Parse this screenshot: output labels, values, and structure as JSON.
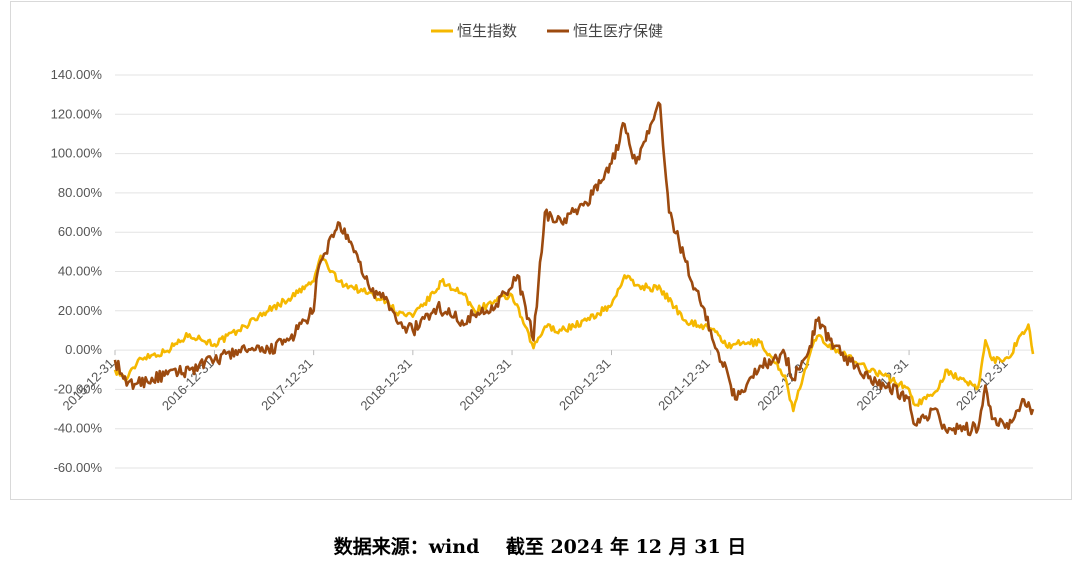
{
  "caption": {
    "source": "数据来源：wind",
    "asof": "截至 2024 年 12 月 31 日"
  },
  "chart_data": {
    "type": "line",
    "title": "",
    "xlabel": "",
    "ylabel": "",
    "ylim": [
      -0.6,
      1.4
    ],
    "y_ticks": [
      "140.00%",
      "120.00%",
      "100.00%",
      "80.00%",
      "60.00%",
      "40.00%",
      "20.00%",
      "0.00%",
      "-20.00%",
      "-40.00%",
      "-60.00%"
    ],
    "y_tick_values": [
      1.4,
      1.2,
      1.0,
      0.8,
      0.6,
      0.4,
      0.2,
      0.0,
      -0.2,
      -0.4,
      -0.6
    ],
    "x_ticks": [
      "2015-12-31",
      "2016-12-31",
      "2017-12-31",
      "2018-12-31",
      "2019-12-31",
      "2020-12-31",
      "2021-12-31",
      "2022-12-31",
      "2023-12-31",
      "2024-12-31"
    ],
    "xlim": [
      "2015-12-31",
      "2025-03-31"
    ],
    "grid": true,
    "legend_position": "top-center",
    "series": [
      {
        "name": "恒生指数",
        "color": "#F5B800",
        "x": [
          "2015-12-31",
          "2016-02-12",
          "2016-03-31",
          "2016-06-30",
          "2016-09-30",
          "2016-12-31",
          "2017-03-31",
          "2017-06-30",
          "2017-09-30",
          "2017-12-31",
          "2018-01-26",
          "2018-03-31",
          "2018-06-30",
          "2018-09-30",
          "2018-10-31",
          "2018-12-31",
          "2019-03-31",
          "2019-04-15",
          "2019-06-30",
          "2019-08-15",
          "2019-09-30",
          "2019-12-31",
          "2020-03-19",
          "2020-04-30",
          "2020-06-30",
          "2020-09-30",
          "2020-12-31",
          "2021-02-17",
          "2021-03-31",
          "2021-06-30",
          "2021-09-30",
          "2021-12-31",
          "2022-03-15",
          "2022-03-31",
          "2022-06-30",
          "2022-09-30",
          "2022-10-31",
          "2022-12-31",
          "2023-01-27",
          "2023-03-31",
          "2023-06-30",
          "2023-09-30",
          "2023-12-31",
          "2024-01-22",
          "2024-03-31",
          "2024-05-20",
          "2024-06-30",
          "2024-09-10",
          "2024-10-07",
          "2024-10-31",
          "2024-12-31",
          "2025-02-20",
          "2025-03-14",
          "2025-03-31"
        ],
        "y": [
          -0.1,
          -0.15,
          -0.04,
          -0.01,
          0.08,
          0.03,
          0.1,
          0.19,
          0.26,
          0.35,
          0.48,
          0.35,
          0.3,
          0.25,
          0.19,
          0.17,
          0.31,
          0.35,
          0.29,
          0.2,
          0.23,
          0.28,
          0.01,
          0.12,
          0.1,
          0.15,
          0.23,
          0.38,
          0.33,
          0.31,
          0.15,
          0.11,
          0.01,
          0.03,
          0.04,
          -0.13,
          -0.31,
          -0.02,
          0.07,
          0.01,
          -0.07,
          -0.13,
          -0.2,
          -0.28,
          -0.22,
          -0.1,
          -0.15,
          -0.19,
          0.05,
          -0.05,
          -0.04,
          0.09,
          0.13,
          -0.02
        ]
      },
      {
        "name": "恒生医疗保健",
        "color": "#9C4A0F",
        "x": [
          "2015-12-31",
          "2016-02-12",
          "2016-06-30",
          "2016-09-30",
          "2016-12-31",
          "2017-03-31",
          "2017-06-30",
          "2017-09-30",
          "2017-12-31",
          "2018-01-15",
          "2018-03-31",
          "2018-06-15",
          "2018-07-31",
          "2018-09-30",
          "2018-10-31",
          "2018-12-31",
          "2019-03-31",
          "2019-06-30",
          "2019-08-15",
          "2019-09-30",
          "2019-12-31",
          "2020-01-20",
          "2020-03-19",
          "2020-04-30",
          "2020-06-30",
          "2020-09-30",
          "2020-12-31",
          "2021-02-17",
          "2021-03-31",
          "2021-06-28",
          "2021-07-31",
          "2021-09-30",
          "2021-12-31",
          "2022-03-15",
          "2022-03-31",
          "2022-06-30",
          "2022-09-30",
          "2022-10-31",
          "2022-12-31",
          "2023-01-27",
          "2023-03-31",
          "2023-06-30",
          "2023-09-30",
          "2023-12-31",
          "2024-01-22",
          "2024-03-31",
          "2024-05-20",
          "2024-06-30",
          "2024-09-10",
          "2024-10-07",
          "2024-10-31",
          "2024-12-31",
          "2025-02-20",
          "2025-03-31"
        ],
        "y": [
          -0.05,
          -0.18,
          -0.13,
          -0.1,
          -0.05,
          0.0,
          -0.01,
          0.05,
          0.2,
          0.4,
          0.65,
          0.45,
          0.3,
          0.25,
          0.15,
          0.1,
          0.22,
          0.15,
          0.18,
          0.2,
          0.32,
          0.38,
          0.05,
          0.7,
          0.65,
          0.75,
          0.95,
          1.15,
          0.95,
          1.25,
          0.7,
          0.45,
          0.1,
          -0.18,
          -0.25,
          -0.08,
          -0.02,
          -0.15,
          0.02,
          0.15,
          0.02,
          -0.1,
          -0.18,
          -0.24,
          -0.38,
          -0.3,
          -0.42,
          -0.4,
          -0.4,
          -0.18,
          -0.35,
          -0.4,
          -0.25,
          -0.3
        ]
      }
    ]
  }
}
